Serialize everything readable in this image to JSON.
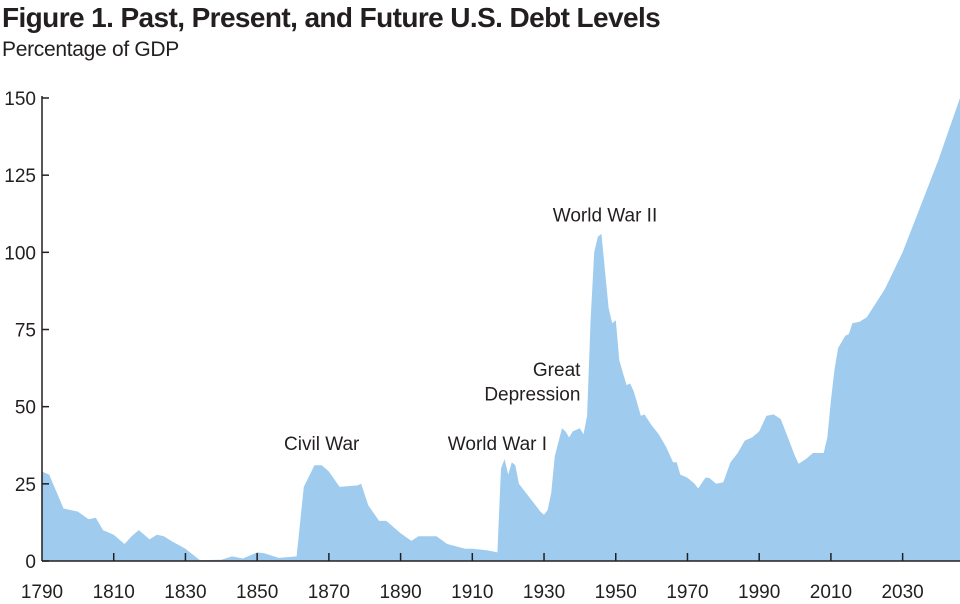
{
  "chart_data": {
    "type": "area",
    "title": "Figure 1. Past, Present, and Future U.S. Debt Levels",
    "subtitle": "Percentage of GDP",
    "xlabel": "",
    "ylabel": "Percentage of GDP",
    "xlim": [
      1790,
      2046
    ],
    "ylim": [
      0,
      150
    ],
    "grid": false,
    "fill_color": "#9ecbee",
    "x_ticks": [
      1790,
      1810,
      1830,
      1850,
      1870,
      1890,
      1910,
      1930,
      1950,
      1970,
      1990,
      2010,
      2030
    ],
    "y_ticks": [
      0,
      25,
      50,
      75,
      100,
      125,
      150
    ],
    "annotations": [
      {
        "text": "Civil War",
        "x": 1868,
        "y": 36
      },
      {
        "text": "World War I",
        "x": 1917,
        "y": 36
      },
      {
        "text": "Great",
        "x": 1929,
        "y": 60
      },
      {
        "text": "Depression",
        "x": 1929,
        "y": 52
      },
      {
        "text": "World War II",
        "x": 1947,
        "y": 110
      }
    ],
    "x": [
      1790,
      1792,
      1796,
      1800,
      1803,
      1805,
      1807,
      1810,
      1813,
      1815,
      1817,
      1820,
      1822,
      1824,
      1826,
      1830,
      1834,
      1840,
      1843,
      1846,
      1850,
      1852,
      1856,
      1861,
      1863,
      1866,
      1868,
      1870,
      1873,
      1878,
      1879,
      1881,
      1884,
      1886,
      1890,
      1893,
      1895,
      1900,
      1903,
      1908,
      1910,
      1914,
      1917,
      1918,
      1919,
      1920,
      1921,
      1922,
      1923,
      1925,
      1927,
      1929,
      1930,
      1931,
      1932,
      1933,
      1935,
      1936,
      1937,
      1938,
      1940,
      1941,
      1942,
      1943,
      1944,
      1945,
      1946,
      1948,
      1949,
      1950,
      1951,
      1953,
      1954,
      1955,
      1957,
      1958,
      1960,
      1962,
      1964,
      1966,
      1967,
      1968,
      1970,
      1972,
      1973,
      1975,
      1976,
      1978,
      1980,
      1982,
      1984,
      1986,
      1988,
      1990,
      1992,
      1994,
      1996,
      1998,
      2000,
      2001,
      2003,
      2005,
      2008,
      2009,
      2010,
      2011,
      2012,
      2014,
      2015,
      2016,
      2018,
      2020,
      2025,
      2030,
      2035,
      2040,
      2046
    ],
    "values": [
      29,
      28,
      17,
      16,
      13.5,
      14,
      10,
      8.5,
      5.5,
      8,
      10,
      7,
      8.5,
      8,
      6.5,
      4,
      0.3,
      0.4,
      1.5,
      0.8,
      2.8,
      2.5,
      1,
      1.5,
      24,
      31,
      31,
      29,
      24,
      24.5,
      25,
      18,
      13,
      13,
      9,
      6.5,
      8,
      8,
      5.5,
      4,
      4,
      3.5,
      2.8,
      30,
      33,
      28,
      32,
      31,
      25,
      22,
      19,
      16,
      15,
      16.5,
      22,
      34,
      43,
      42,
      40,
      42,
      43,
      41,
      47,
      78,
      100,
      105,
      106,
      82,
      77,
      78,
      65,
      57,
      57.5,
      55,
      47,
      47.5,
      44,
      41,
      37,
      32,
      32,
      28,
      27,
      25,
      23.5,
      27,
      27,
      25,
      25.5,
      32,
      35,
      39,
      40,
      42,
      47,
      47.5,
      46,
      40,
      34,
      31.5,
      33,
      35,
      35,
      40,
      52,
      62,
      69,
      73,
      73.5,
      77,
      77.5,
      79,
      88,
      100,
      115,
      130,
      150
    ]
  }
}
